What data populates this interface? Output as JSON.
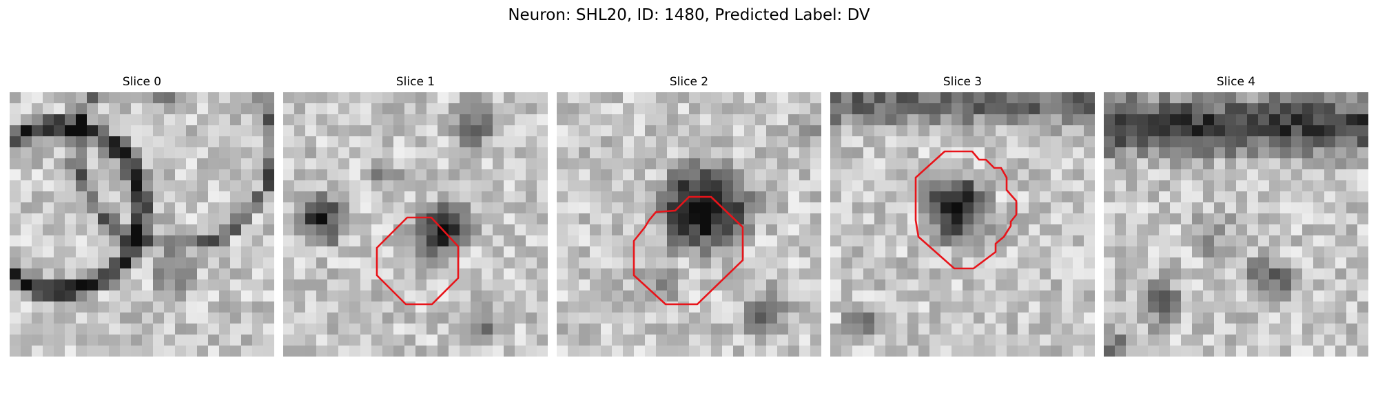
{
  "figure": {
    "title": "Neuron: SHL20, ID: 1480, Predicted Label: DV"
  },
  "panels": [
    {
      "title": "Slice 0",
      "has_roi": false,
      "seed": 11
    },
    {
      "title": "Slice 1",
      "has_roi": true,
      "seed": 23
    },
    {
      "title": "Slice 2",
      "has_roi": true,
      "seed": 37
    },
    {
      "title": "Slice 3",
      "has_roi": true,
      "seed": 41
    },
    {
      "title": "Slice 4",
      "has_roi": false,
      "seed": 59
    }
  ],
  "colors": {
    "roi_outline": "#e8141a",
    "background": "#ffffff",
    "pixel_colormap": "gray"
  }
}
